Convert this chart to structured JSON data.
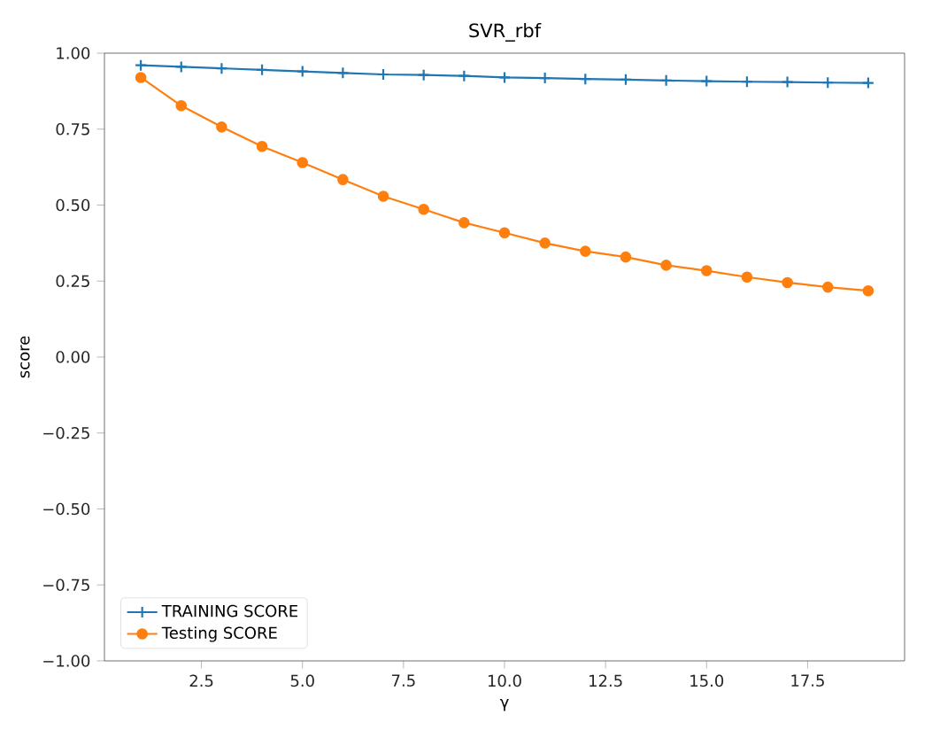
{
  "chart_data": {
    "type": "line",
    "title": "SVR_rbf",
    "xlabel": "γ",
    "ylabel": "score",
    "x": [
      1,
      2,
      3,
      4,
      5,
      6,
      7,
      8,
      9,
      10,
      11,
      12,
      13,
      14,
      15,
      16,
      17,
      18,
      19
    ],
    "series": [
      {
        "name": "TRAINING SCORE",
        "color": "#1f77b4",
        "marker": "cross",
        "values": [
          0.96,
          0.955,
          0.95,
          0.945,
          0.94,
          0.935,
          0.93,
          0.928,
          0.925,
          0.92,
          0.918,
          0.915,
          0.913,
          0.91,
          0.908,
          0.906,
          0.905,
          0.903,
          0.902
        ]
      },
      {
        "name": "Testing SCORE",
        "color": "#ff7f0e",
        "marker": "circle",
        "values": [
          0.92,
          0.827,
          0.757,
          0.693,
          0.64,
          0.584,
          0.529,
          0.486,
          0.442,
          0.409,
          0.375,
          0.348,
          0.329,
          0.302,
          0.284,
          0.263,
          0.245,
          0.23,
          0.218
        ]
      }
    ],
    "xlim": [
      0.1,
      19.9
    ],
    "ylim": [
      -1.0,
      1.0
    ],
    "xticks": [
      {
        "value": 2.5,
        "label": "2.5"
      },
      {
        "value": 5.0,
        "label": "5.0"
      },
      {
        "value": 7.5,
        "label": "7.5"
      },
      {
        "value": 10.0,
        "label": "10.0"
      },
      {
        "value": 12.5,
        "label": "12.5"
      },
      {
        "value": 15.0,
        "label": "15.0"
      },
      {
        "value": 17.5,
        "label": "17.5"
      }
    ],
    "yticks": [
      {
        "value": -1.0,
        "label": "−1.00"
      },
      {
        "value": -0.75,
        "label": "−0.75"
      },
      {
        "value": -0.5,
        "label": "−0.50"
      },
      {
        "value": -0.25,
        "label": "−0.25"
      },
      {
        "value": 0.0,
        "label": "0.00"
      },
      {
        "value": 0.25,
        "label": "0.25"
      },
      {
        "value": 0.5,
        "label": "0.50"
      },
      {
        "value": 0.75,
        "label": "0.75"
      },
      {
        "value": 1.0,
        "label": "1.00"
      }
    ],
    "legend": "bottom left",
    "grid": false
  }
}
